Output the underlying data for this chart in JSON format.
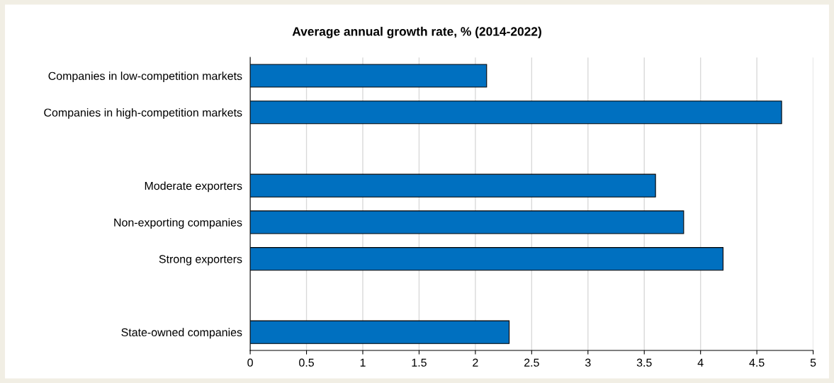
{
  "chart_data": {
    "type": "bar",
    "orientation": "horizontal",
    "title": "Average annual growth rate, % (2014-2022)",
    "categories": [
      "Companies in low-competition markets",
      "Companies in high-competition markets",
      null,
      "Moderate exporters",
      "Non-exporting companies",
      "Strong exporters",
      null,
      "State-owned companies"
    ],
    "values": [
      2.1,
      4.72,
      null,
      3.6,
      3.85,
      4.2,
      null,
      2.3
    ],
    "color": "#0070c0",
    "xlim": [
      0,
      5
    ],
    "xticks": [
      0,
      0.5,
      1,
      1.5,
      2,
      2.5,
      3,
      3.5,
      4,
      4.5,
      5
    ],
    "grid": "x",
    "legend": false
  }
}
